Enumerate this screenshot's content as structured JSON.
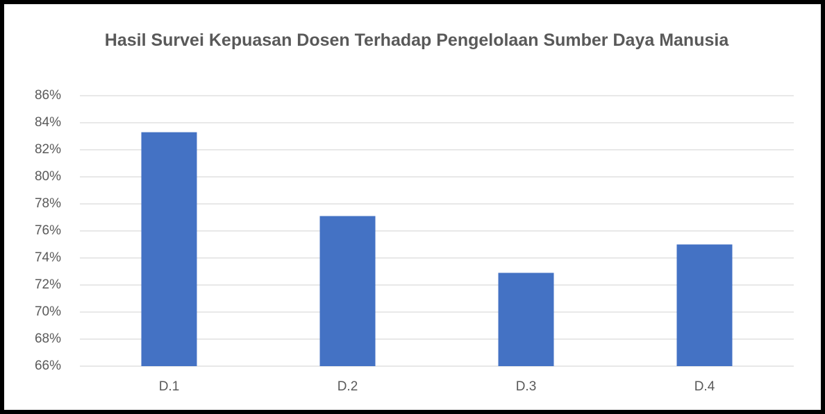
{
  "chart_data": {
    "type": "bar",
    "title": "Hasil Survei Kepuasan Dosen Terhadap Pengelolaan Sumber Daya Manusia",
    "categories": [
      "D.1",
      "D.2",
      "D.3",
      "D.4"
    ],
    "values": [
      83.3,
      77.1,
      72.9,
      75.0
    ],
    "color": "#4472c4",
    "ylim": [
      66,
      86
    ],
    "yticks": [
      {
        "value": 66,
        "label": "66%"
      },
      {
        "value": 68,
        "label": "68%"
      },
      {
        "value": 70,
        "label": "70%"
      },
      {
        "value": 72,
        "label": "72%"
      },
      {
        "value": 74,
        "label": "74%"
      },
      {
        "value": 76,
        "label": "76%"
      },
      {
        "value": 78,
        "label": "78%"
      },
      {
        "value": 80,
        "label": "80%"
      },
      {
        "value": 82,
        "label": "82%"
      },
      {
        "value": 84,
        "label": "84%"
      },
      {
        "value": 86,
        "label": "86%"
      }
    ],
    "grid": true
  }
}
